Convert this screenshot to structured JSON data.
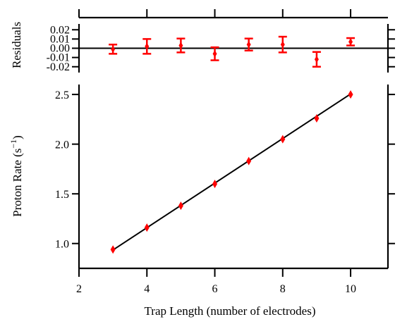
{
  "chart_data": [
    {
      "id": "residuals",
      "type": "scatter",
      "xlabel": "",
      "ylabel": "Residuals",
      "xlim": [
        2,
        11.1
      ],
      "ylim": [
        -0.024,
        0.024
      ],
      "yticks": [
        0.02,
        0.01,
        0.0,
        -0.01,
        -0.02
      ],
      "ytick_labels": [
        "0.02",
        "0.01",
        "0.00",
        "-0.01",
        "-0.02"
      ],
      "zero_line": 0,
      "grid": false,
      "color": "#ff0000",
      "points": [
        {
          "x": 3,
          "y": -0.001,
          "err": 0.005
        },
        {
          "x": 4,
          "y": 0.002,
          "err": 0.008
        },
        {
          "x": 5,
          "y": 0.003,
          "err": 0.0075
        },
        {
          "x": 6,
          "y": -0.006,
          "err": 0.007
        },
        {
          "x": 7,
          "y": 0.004,
          "err": 0.0065
        },
        {
          "x": 8,
          "y": 0.004,
          "err": 0.0085
        },
        {
          "x": 9,
          "y": -0.012,
          "err": 0.008
        },
        {
          "x": 10,
          "y": 0.007,
          "err": 0.004
        }
      ]
    },
    {
      "id": "main",
      "type": "scatter",
      "xlabel": "Trap Length (number of electrodes)",
      "ylabel": "Proton Rate (s",
      "ylabel_sup": "−1",
      "ylabel_end": ")",
      "xlim": [
        2,
        11.1
      ],
      "ylim": [
        0.75,
        2.6
      ],
      "xticks": [
        2,
        4,
        6,
        8,
        10
      ],
      "xtick_labels": [
        "2",
        "4",
        "6",
        "8",
        "10"
      ],
      "yticks": [
        1.0,
        1.5,
        2.0,
        2.5
      ],
      "ytick_labels": [
        "1.0",
        "1.5",
        "2.0",
        "2.5"
      ],
      "grid": false,
      "color": "#ff0000",
      "fit_line": {
        "x": [
          3,
          10
        ],
        "y": [
          0.935,
          2.505
        ],
        "color": "#000000"
      },
      "points": [
        {
          "x": 3,
          "y": 0.94
        },
        {
          "x": 4,
          "y": 1.16
        },
        {
          "x": 5,
          "y": 1.38
        },
        {
          "x": 6,
          "y": 1.6
        },
        {
          "x": 7,
          "y": 1.83
        },
        {
          "x": 8,
          "y": 2.05
        },
        {
          "x": 9,
          "y": 2.26
        },
        {
          "x": 10,
          "y": 2.5
        }
      ]
    }
  ]
}
